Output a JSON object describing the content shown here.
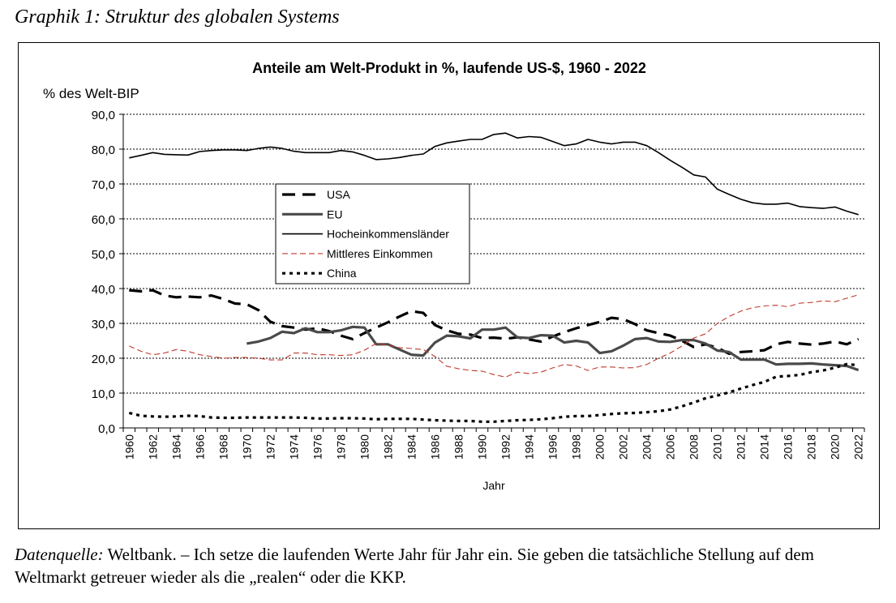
{
  "caption": "Graphik 1: Struktur des globalen Systems",
  "footer": {
    "source_label": "Datenquelle:",
    "source_text": " Weltbank. – Ich setze die laufenden Werte Jahr für Jahr ein. Sie geben die tatsächliche Stellung auf dem Weltmarkt getreuer wieder als die „realen“ oder die KKP."
  },
  "chart_data": {
    "type": "line",
    "title": "Anteile am Welt-Produkt in %, laufende US-$, 1960 - 2022",
    "ylabel": "% des Welt-BIP",
    "xlabel": "Jahr",
    "ylim": [
      0,
      90
    ],
    "yticks": [
      "0,0",
      "10,0",
      "20,0",
      "30,0",
      "40,0",
      "50,0",
      "60,0",
      "70,0",
      "80,0",
      "90,0"
    ],
    "x_start": 1960,
    "x_end": 2022,
    "xticks": [
      "1960",
      "1962",
      "1964",
      "1966",
      "1968",
      "1970",
      "1972",
      "1974",
      "1976",
      "1978",
      "1980",
      "1982",
      "1984",
      "1986",
      "1988",
      "1990",
      "1992",
      "1994",
      "1996",
      "1998",
      "2000",
      "2002",
      "2004",
      "2006",
      "2008",
      "2010",
      "2012",
      "2014",
      "2016",
      "2018",
      "2020",
      "2022"
    ],
    "grid": true,
    "legend_position": "left-middle",
    "series": [
      {
        "key": "usa",
        "name": "USA",
        "color": "#000000",
        "style": "dash",
        "start": 1960,
        "values": [
          39.5,
          39.2,
          39.5,
          38.0,
          37.5,
          37.7,
          37.5,
          38.0,
          37.0,
          35.7,
          35.5,
          33.8,
          30.5,
          29.2,
          28.8,
          28.2,
          28.6,
          27.8,
          26.5,
          25.5,
          27.2,
          28.8,
          30.3,
          32.0,
          33.5,
          33.0,
          29.5,
          28.0,
          27.0,
          26.8,
          25.8,
          25.9,
          25.6,
          26.0,
          25.4,
          24.8,
          26.2,
          27.5,
          28.6,
          29.5,
          30.4,
          31.6,
          31.2,
          29.8,
          28.0,
          27.2,
          26.5,
          25.0,
          23.2,
          24.0,
          23.0,
          21.3,
          21.8,
          22.0,
          22.3,
          24.0,
          24.7,
          24.2,
          23.9,
          24.2,
          24.8,
          24.0,
          25.5
        ]
      },
      {
        "key": "eu",
        "name": "EU",
        "color": "#4a4a4a",
        "style": "thick",
        "start": 1970,
        "values": [
          24.2,
          24.8,
          25.8,
          27.6,
          27.2,
          28.6,
          27.5,
          27.5,
          28.0,
          29.0,
          28.8,
          24.0,
          24.0,
          22.5,
          21.0,
          20.8,
          24.5,
          26.5,
          26.3,
          25.7,
          28.2,
          28.2,
          28.8,
          26.0,
          25.8,
          26.6,
          26.5,
          24.5,
          25.0,
          24.5,
          21.5,
          22.0,
          23.6,
          25.5,
          25.8,
          24.8,
          24.7,
          25.2,
          25.2,
          24.2,
          22.2,
          21.8,
          19.6,
          19.6,
          19.6,
          18.2,
          18.4,
          18.4,
          18.5,
          18.2,
          18.0,
          17.8,
          16.6
        ]
      },
      {
        "key": "high",
        "name": "Hocheinkommensländer",
        "color": "#000000",
        "style": "solid",
        "start": 1960,
        "values": [
          77.5,
          78.2,
          79.0,
          78.5,
          78.4,
          78.3,
          79.3,
          79.6,
          79.8,
          79.8,
          79.6,
          80.2,
          80.6,
          80.2,
          79.4,
          79.0,
          79.0,
          79.0,
          79.6,
          79.2,
          78.2,
          77.0,
          77.2,
          77.6,
          78.2,
          78.6,
          80.8,
          81.8,
          82.3,
          82.8,
          82.8,
          84.2,
          84.6,
          83.2,
          83.6,
          83.4,
          82.2,
          81.0,
          81.5,
          82.8,
          82.0,
          81.5,
          82.0,
          82.0,
          81.0,
          79.0,
          76.8,
          74.8,
          72.6,
          72.0,
          68.5,
          67.0,
          65.6,
          64.6,
          64.2,
          64.2,
          64.5,
          63.5,
          63.2,
          63.0,
          63.4,
          62.2,
          61.2
        ]
      },
      {
        "key": "middle",
        "name": "Mittleres Einkommen",
        "color": "#c0392b",
        "style": "thin-dash",
        "start": 1960,
        "values": [
          23.5,
          22.0,
          21.0,
          21.5,
          22.5,
          22.0,
          21.0,
          20.5,
          20.0,
          20.2,
          20.2,
          20.0,
          19.5,
          19.5,
          21.5,
          21.5,
          21.0,
          21.0,
          20.8,
          21.0,
          22.3,
          24.2,
          23.8,
          23.0,
          22.8,
          22.5,
          20.5,
          17.7,
          17.0,
          16.5,
          16.3,
          15.3,
          14.6,
          16.0,
          15.6,
          16.0,
          17.2,
          18.2,
          17.8,
          16.5,
          17.5,
          17.5,
          17.2,
          17.3,
          18.2,
          20.0,
          21.5,
          23.5,
          25.8,
          27.0,
          30.0,
          32.0,
          33.5,
          34.5,
          35.0,
          35.2,
          34.8,
          35.8,
          36.0,
          36.5,
          36.2,
          37.2,
          38.2
        ]
      },
      {
        "key": "china",
        "name": "China",
        "color": "#000000",
        "style": "dot",
        "start": 1960,
        "values": [
          4.3,
          3.5,
          3.3,
          3.2,
          3.3,
          3.5,
          3.4,
          3.0,
          2.9,
          2.9,
          3.0,
          3.0,
          3.0,
          3.0,
          3.0,
          2.9,
          2.7,
          2.7,
          2.8,
          2.8,
          2.7,
          2.5,
          2.6,
          2.6,
          2.6,
          2.4,
          2.2,
          2.1,
          2.0,
          2.0,
          1.8,
          1.8,
          2.0,
          2.2,
          2.3,
          2.5,
          2.8,
          3.2,
          3.4,
          3.4,
          3.7,
          4.0,
          4.2,
          4.3,
          4.5,
          4.8,
          5.3,
          6.2,
          7.3,
          8.5,
          9.3,
          10.2,
          11.3,
          12.3,
          13.2,
          14.7,
          14.9,
          15.2,
          16.0,
          16.5,
          17.3,
          18.3,
          18.0
        ]
      }
    ]
  }
}
